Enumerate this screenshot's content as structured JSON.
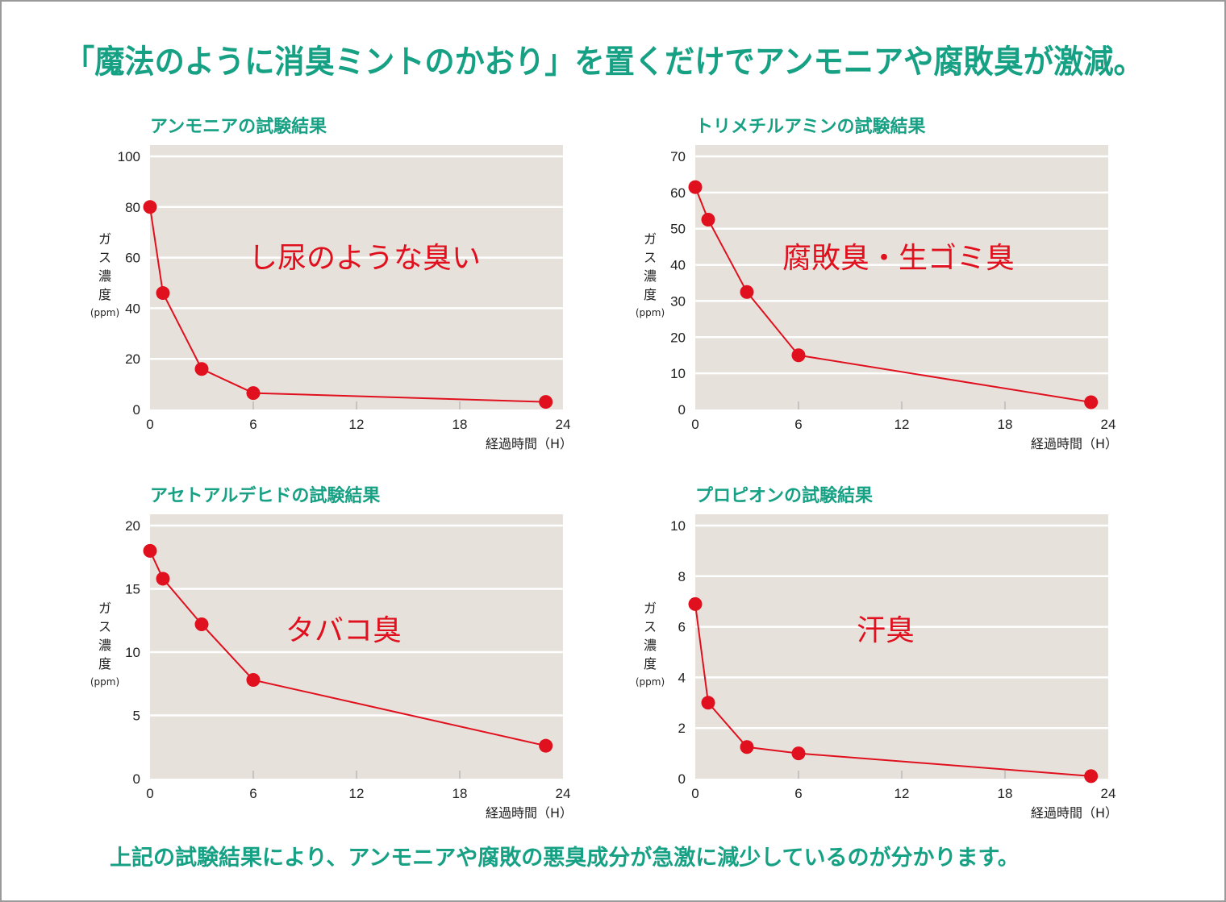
{
  "headline": "「魔法のように消臭ミントのかおり」を置くだけでアンモニアや腐敗臭が激減。",
  "footer": "上記の試験結果により、アンモニアや腐敗の悪臭成分が急激に減少しているのが分かります。",
  "colors": {
    "accent": "#17a184",
    "series": "#e0101e",
    "plot_bg": "#e6e2db",
    "grid": "#ffffff"
  },
  "chart_data": [
    {
      "type": "line",
      "title": "アンモニアの試験結果",
      "annotation": "し尿のような臭い",
      "ylabel": [
        "ガ",
        "ス",
        "濃",
        "度"
      ],
      "yunit": "(ppm)",
      "xlabel": "経過時間（H）",
      "x": [
        0,
        0.75,
        3,
        6,
        23
      ],
      "values": [
        80,
        46,
        16,
        6.5,
        3
      ],
      "xlim": [
        0,
        24
      ],
      "ylim": [
        0,
        100
      ],
      "xticks": [
        "0",
        "6",
        "12",
        "18",
        "24"
      ],
      "xtick_values": [
        0,
        6,
        12,
        18,
        24
      ],
      "yticks": [
        "0",
        "20",
        "40",
        "60",
        "80",
        "100"
      ],
      "ytick_values": [
        0,
        20,
        40,
        60,
        80,
        100
      ],
      "grid": true
    },
    {
      "type": "line",
      "title": "トリメチルアミンの試験結果",
      "annotation": "腐敗臭・生ゴミ臭",
      "ylabel": [
        "ガ",
        "ス",
        "濃",
        "度"
      ],
      "yunit": "(ppm)",
      "xlabel": "経過時間（H）",
      "x": [
        0,
        0.75,
        3,
        6,
        23
      ],
      "values": [
        61.5,
        52.5,
        32.5,
        15,
        2
      ],
      "xlim": [
        0,
        24
      ],
      "ylim": [
        0,
        70
      ],
      "xticks": [
        "0",
        "6",
        "12",
        "18",
        "24"
      ],
      "xtick_values": [
        0,
        6,
        12,
        18,
        24
      ],
      "yticks": [
        "0",
        "10",
        "20",
        "30",
        "40",
        "50",
        "60",
        "70"
      ],
      "ytick_values": [
        0,
        10,
        20,
        30,
        40,
        50,
        60,
        70
      ],
      "grid": true
    },
    {
      "type": "line",
      "title": "アセトアルデヒドの試験結果",
      "annotation": "タバコ臭",
      "ylabel": [
        "ガ",
        "ス",
        "濃",
        "度"
      ],
      "yunit": "(ppm)",
      "xlabel": "経過時間（H）",
      "x": [
        0,
        0.75,
        3,
        6,
        23
      ],
      "values": [
        18,
        15.8,
        12.2,
        7.8,
        2.6
      ],
      "xlim": [
        0,
        24
      ],
      "ylim": [
        0,
        20
      ],
      "xticks": [
        "0",
        "6",
        "12",
        "18",
        "24"
      ],
      "xtick_values": [
        0,
        6,
        12,
        18,
        24
      ],
      "yticks": [
        "0",
        "5",
        "10",
        "15",
        "20"
      ],
      "ytick_values": [
        0,
        5,
        10,
        15,
        20
      ],
      "grid": true
    },
    {
      "type": "line",
      "title": "プロピオンの試験結果",
      "annotation": "汗臭",
      "ylabel": [
        "ガ",
        "ス",
        "濃",
        "度"
      ],
      "yunit": "(ppm)",
      "xlabel": "経過時間（H）",
      "x": [
        0,
        0.75,
        3,
        6,
        23
      ],
      "values": [
        6.9,
        3,
        1.25,
        1,
        0.1
      ],
      "xlim": [
        0,
        24
      ],
      "ylim": [
        0,
        10
      ],
      "xticks": [
        "0",
        "6",
        "12",
        "18",
        "24"
      ],
      "xtick_values": [
        0,
        6,
        12,
        18,
        24
      ],
      "yticks": [
        "0",
        "2",
        "4",
        "6",
        "8",
        "10"
      ],
      "ytick_values": [
        0,
        2,
        4,
        6,
        8,
        10
      ],
      "grid": true
    }
  ]
}
